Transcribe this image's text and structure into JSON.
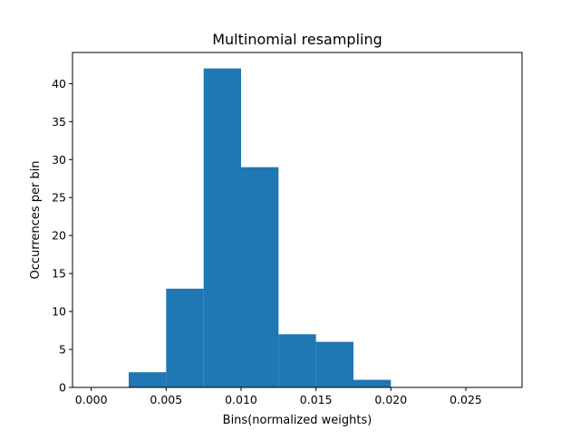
{
  "chart_data": {
    "type": "bar",
    "title": "Multinomial resampling",
    "xlabel": "Bins(normalized weights)",
    "ylabel": "Occurrences per bin",
    "xlim": [
      -0.00125,
      0.02875
    ],
    "ylim": [
      0,
      44.1
    ],
    "xticks": [
      0.0,
      0.005,
      0.01,
      0.015,
      0.02,
      0.025
    ],
    "xtick_labels": [
      "0.000",
      "0.005",
      "0.010",
      "0.015",
      "0.020",
      "0.025"
    ],
    "yticks": [
      0,
      5,
      10,
      15,
      20,
      25,
      30,
      35,
      40
    ],
    "ytick_labels": [
      "0",
      "5",
      "10",
      "15",
      "20",
      "25",
      "30",
      "35",
      "40"
    ],
    "bin_edges": [
      0.0025,
      0.005,
      0.0075,
      0.01,
      0.0125,
      0.015,
      0.0175,
      0.02
    ],
    "values": [
      2,
      13,
      42,
      29,
      7,
      6,
      1
    ],
    "bar_color": "#1f77b4",
    "grid": false,
    "legend": "none"
  }
}
